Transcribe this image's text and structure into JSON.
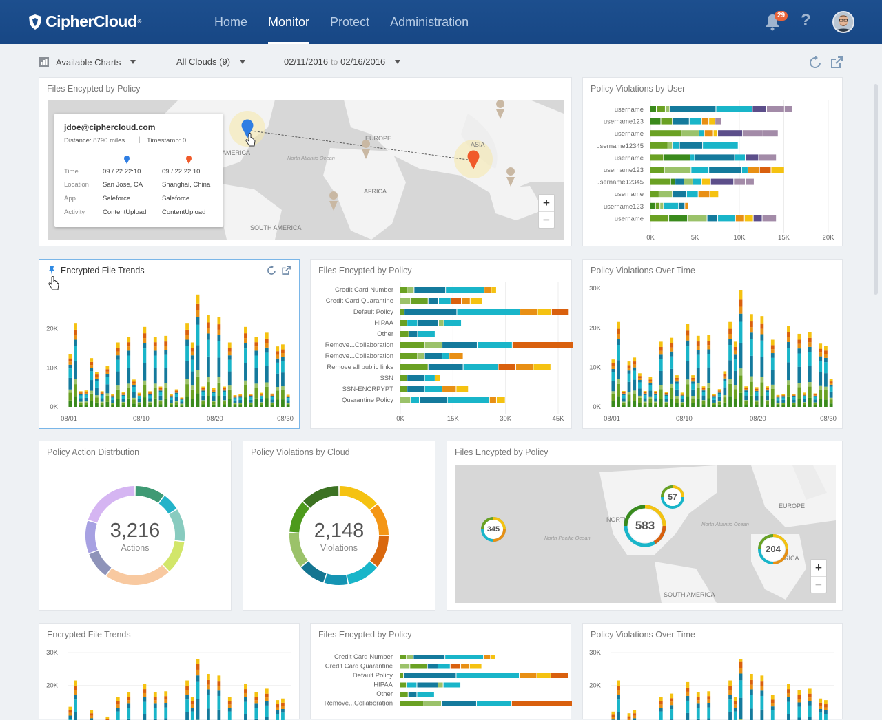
{
  "app": {
    "brand": "CipherCloud",
    "trademark": "®"
  },
  "nav": {
    "items": [
      "Home",
      "Monitor",
      "Protect",
      "Administration"
    ],
    "active": "Monitor"
  },
  "header": {
    "notifications": "29",
    "help": "?"
  },
  "filters": {
    "charts": "Available Charts",
    "clouds": "All Clouds (9)",
    "date_from": "02/11/2016",
    "date_sep": "to",
    "date_to": "02/16/2016"
  },
  "colors": {
    "green_dark": "#3a8a1c",
    "green": "#6aa123",
    "green_light": "#9bc26a",
    "teal_dark": "#147a9c",
    "teal": "#19b5c9",
    "orange": "#e88f14",
    "orange_dark": "#d9600e",
    "yellow": "#f5c211",
    "purple": "#5c4e8a",
    "mauve": "#a38ba8"
  },
  "map1": {
    "title": "Files Encypted by Policy",
    "tooltip": {
      "email": "jdoe@ciphercloud.com",
      "distance": "Distance: 8790 miles",
      "sep": "|",
      "timestamp": "Timestamp: 0",
      "rows": [
        {
          "label": "Time",
          "a": "09 / 22 22:10",
          "b": "09 / 22 22:10"
        },
        {
          "label": "Location",
          "a": "San Jose, CA",
          "b": "Shanghai, China"
        },
        {
          "label": "App",
          "a": "Saleforce",
          "b": "Saleforce"
        },
        {
          "label": "Activity",
          "a": "ContentUpload",
          "b": "ContentUpload"
        }
      ]
    },
    "labels": {
      "europe": "EUROPE",
      "asia": "ASIA",
      "africa": "AFRICA",
      "south_america": "SOUTH AMERICA",
      "america": "AMERICA",
      "ocean": "North Atlantic Ocean"
    },
    "zoom_in": "+",
    "zoom_out": "−"
  },
  "violations_by_user": {
    "title": "Policy Violations by User",
    "chart_data": {
      "type": "bar",
      "orientation": "horizontal",
      "stacked": true,
      "categories": [
        "username",
        "username123",
        "username",
        "username12345",
        "username",
        "username123",
        "username12345",
        "username",
        "username123",
        "username"
      ],
      "segments": [
        [
          [
            "green_dark",
            700
          ],
          [
            "green",
            1000
          ],
          [
            "green_light",
            500
          ],
          [
            "teal_dark",
            5200
          ],
          [
            "teal",
            4100
          ],
          [
            "purple",
            1600
          ],
          [
            "mauve",
            2000
          ],
          [
            "mauve",
            900
          ]
        ],
        [
          [
            "green_dark",
            1200
          ],
          [
            "green",
            1300
          ],
          [
            "teal_dark",
            1900
          ],
          [
            "teal",
            1400
          ],
          [
            "orange",
            800
          ],
          [
            "yellow",
            700
          ],
          [
            "mauve",
            700
          ]
        ],
        [
          [
            "green",
            3500
          ],
          [
            "green_light",
            2000
          ],
          [
            "teal",
            600
          ],
          [
            "orange",
            1000
          ],
          [
            "yellow",
            500
          ],
          [
            "purple",
            2800
          ],
          [
            "mauve",
            2300
          ],
          [
            "mauve",
            1700
          ]
        ],
        [
          [
            "green",
            2000
          ],
          [
            "green_light",
            500
          ],
          [
            "teal",
            800
          ],
          [
            "teal_dark",
            2600
          ],
          [
            "teal",
            4000
          ]
        ],
        [
          [
            "green",
            1500
          ],
          [
            "green_dark",
            3000
          ],
          [
            "teal",
            500
          ],
          [
            "teal_dark",
            4500
          ],
          [
            "teal",
            1200
          ],
          [
            "purple",
            1500
          ],
          [
            "mauve",
            2000
          ]
        ],
        [
          [
            "green",
            1600
          ],
          [
            "green_light",
            3000
          ],
          [
            "teal",
            2000
          ],
          [
            "teal_dark",
            3700
          ],
          [
            "teal",
            700
          ],
          [
            "orange",
            1300
          ],
          [
            "orange_dark",
            1300
          ],
          [
            "yellow",
            1500
          ]
        ],
        [
          [
            "green",
            2300
          ],
          [
            "green_dark",
            500
          ],
          [
            "teal_dark",
            1000
          ],
          [
            "green_light",
            1000
          ],
          [
            "teal",
            1000
          ],
          [
            "yellow",
            1000
          ],
          [
            "purple",
            2600
          ],
          [
            "mauve",
            1300
          ],
          [
            "mauve",
            1000
          ]
        ],
        [
          [
            "green",
            1000
          ],
          [
            "green_light",
            1500
          ],
          [
            "teal_dark",
            1600
          ],
          [
            "teal",
            1300
          ],
          [
            "orange",
            1300
          ],
          [
            "yellow",
            1000
          ]
        ],
        [
          [
            "green_dark",
            600
          ],
          [
            "green",
            500
          ],
          [
            "green_light",
            400
          ],
          [
            "teal",
            1700
          ],
          [
            "teal_dark",
            700
          ],
          [
            "orange",
            400
          ]
        ],
        [
          [
            "green",
            2100
          ],
          [
            "green_dark",
            2100
          ],
          [
            "green_light",
            2200
          ],
          [
            "teal_dark",
            1200
          ],
          [
            "teal",
            2000
          ],
          [
            "orange",
            1000
          ],
          [
            "yellow",
            1000
          ],
          [
            "purple",
            1000
          ],
          [
            "mauve",
            1600
          ]
        ]
      ],
      "xlim": [
        0,
        20000
      ],
      "xticks": [
        "0K",
        "5K",
        "10K",
        "15K",
        "20K"
      ]
    }
  },
  "trends1": {
    "title": "Encrypted File Trends",
    "chart_data": {
      "type": "bar",
      "stacked": true,
      "ylim": [
        0,
        30000
      ],
      "yticks": [
        "0K",
        "10K",
        "20K"
      ],
      "xticks": [
        "08/01",
        "08/10",
        "08/20",
        "08/30"
      ],
      "values": [
        13500,
        21500,
        4000,
        4200,
        12500,
        9000,
        4000,
        10500,
        3200,
        16500,
        3800,
        18000,
        7000,
        3600,
        20500,
        4000,
        18000,
        5200,
        18200,
        3200,
        4500,
        2400,
        21500,
        16500,
        28800,
        5200,
        23500,
        4800,
        23000,
        5200,
        16500,
        3000,
        3200,
        20500,
        3300,
        18000,
        3600,
        19000,
        3400,
        15500,
        16000,
        3100
      ]
    }
  },
  "policy_bars": {
    "title": "Files Encypted by Policy",
    "chart_data": {
      "type": "bar",
      "orientation": "horizontal",
      "stacked": true,
      "categories": [
        "Credit Card Number",
        "Credit Card Quarantine",
        "Default Policy",
        "HIPAA",
        "Other",
        "Remove...Collaboration",
        "Remove...Collaboration",
        "Remove all public links",
        "SSN",
        "SSN-ENCRPYPT",
        "Quarantine Policy"
      ],
      "segments": [
        [
          [
            "green",
            2000
          ],
          [
            "green_light",
            2000
          ],
          [
            "teal_dark",
            9000
          ],
          [
            "teal",
            11000
          ],
          [
            "orange",
            2000
          ],
          [
            "yellow",
            1500
          ]
        ],
        [
          [
            "green_light",
            3000
          ],
          [
            "green",
            5000
          ],
          [
            "teal_dark",
            3000
          ],
          [
            "teal",
            3500
          ],
          [
            "orange_dark",
            3000
          ],
          [
            "orange",
            2500
          ],
          [
            "yellow",
            3500
          ]
        ],
        [
          [
            "green",
            1200
          ],
          [
            "teal_dark",
            15000
          ],
          [
            "teal",
            18000
          ],
          [
            "orange",
            5000
          ],
          [
            "yellow",
            4000
          ],
          [
            "orange_dark",
            5000
          ]
        ],
        [
          [
            "green",
            2000
          ],
          [
            "teal",
            3000
          ],
          [
            "teal_dark",
            6000
          ],
          [
            "green_light",
            1500
          ],
          [
            "teal",
            5000
          ]
        ],
        [
          [
            "green",
            2500
          ],
          [
            "teal_dark",
            2500
          ],
          [
            "teal",
            5000
          ]
        ],
        [
          [
            "green",
            7000
          ],
          [
            "green_light",
            5000
          ],
          [
            "teal_dark",
            10000
          ],
          [
            "teal",
            10000
          ],
          [
            "orange_dark",
            20000
          ],
          [
            "orange",
            10000
          ],
          [
            "yellow",
            10000
          ]
        ],
        [
          [
            "green",
            5000
          ],
          [
            "green_light",
            2000
          ],
          [
            "teal_dark",
            5000
          ],
          [
            "teal",
            2000
          ],
          [
            "orange",
            4000
          ]
        ],
        [
          [
            "green",
            8000
          ],
          [
            "teal_dark",
            10000
          ],
          [
            "teal",
            10000
          ],
          [
            "orange_dark",
            5000
          ],
          [
            "orange",
            5000
          ],
          [
            "yellow",
            5000
          ]
        ],
        [
          [
            "green",
            2000
          ],
          [
            "teal_dark",
            5000
          ],
          [
            "teal",
            3000
          ],
          [
            "yellow",
            1500
          ]
        ],
        [
          [
            "green",
            2000
          ],
          [
            "teal_dark",
            5000
          ],
          [
            "teal",
            5000
          ],
          [
            "orange",
            4000
          ],
          [
            "yellow",
            3500
          ]
        ],
        [
          [
            "green_light",
            3000
          ],
          [
            "teal",
            2500
          ],
          [
            "teal_dark",
            8000
          ],
          [
            "teal",
            12000
          ],
          [
            "orange",
            2000
          ],
          [
            "yellow",
            2500
          ]
        ]
      ],
      "xlim": [
        0,
        45000
      ],
      "xticks": [
        "0K",
        "15K",
        "30K",
        "45K"
      ]
    }
  },
  "over_time1": {
    "title": "Policy Violations Over Time",
    "chart_data": {
      "type": "bar",
      "stacked": true,
      "ylim": [
        0,
        30000
      ],
      "yticks": [
        "0K",
        "10K",
        "20K",
        "30K"
      ],
      "xticks": [
        "08/01",
        "08/10",
        "08/20",
        "08/30"
      ],
      "values": [
        12000,
        21500,
        4000,
        11500,
        12500,
        8500,
        4000,
        7500,
        4000,
        16500,
        3800,
        17500,
        8000,
        3600,
        21000,
        8000,
        18000,
        5200,
        18200,
        3200,
        4500,
        9000,
        21500,
        16500,
        29500,
        5200,
        23500,
        5000,
        23000,
        5200,
        17000,
        3000,
        3200,
        20500,
        3300,
        18500,
        3600,
        19000,
        3400,
        16000,
        15500,
        7000
      ]
    }
  },
  "action_distribution": {
    "title": "Policy Action Distrbution",
    "value": "3,216",
    "unit": "Actions",
    "chart_data": {
      "type": "pie",
      "segments": [
        {
          "value": 10,
          "color": "#3f9a74"
        },
        {
          "value": 6,
          "color": "#23b3c9"
        },
        {
          "value": 11,
          "color": "#88cbbf"
        },
        {
          "value": 11,
          "color": "#d2e66a"
        },
        {
          "value": 22,
          "color": "#f8c9a0"
        },
        {
          "value": 9,
          "color": "#8e93b9"
        },
        {
          "value": 11,
          "color": "#a7a1e2"
        },
        {
          "value": 20,
          "color": "#d5b5f2"
        }
      ]
    }
  },
  "violations_by_cloud": {
    "title": "Policy Violations by Cloud",
    "value": "2,148",
    "unit": "Violations",
    "chart_data": {
      "type": "pie",
      "segments": [
        {
          "value": 14,
          "color": "#f5c211"
        },
        {
          "value": 11,
          "color": "#f49616"
        },
        {
          "value": 11,
          "color": "#d9680f"
        },
        {
          "value": 11,
          "color": "#19b5c9"
        },
        {
          "value": 8,
          "color": "#1594b3"
        },
        {
          "value": 9,
          "color": "#147591"
        },
        {
          "value": 12,
          "color": "#9bc26a"
        },
        {
          "value": 11,
          "color": "#4d9a1c"
        },
        {
          "value": 13,
          "color": "#3c7222"
        }
      ]
    }
  },
  "map2": {
    "title": "Files Encypted by Policy",
    "bubbles": [
      "345",
      "583",
      "57",
      "204"
    ],
    "labels": {
      "europe": "EUROPE",
      "north": "NORTH",
      "south_america": "SOUTH AMERICA",
      "africa": "RICA",
      "pacific": "North Pacific Ocean",
      "atlantic": "North Atlantic Ocean"
    },
    "zoom_in": "+",
    "zoom_out": "−"
  },
  "trends2": {
    "title": "Encrypted File Trends",
    "yticks": [
      "30K",
      "20K"
    ]
  },
  "policy_bars2": {
    "title": "Files Encypted by Policy",
    "categories": [
      "Credit Card Number",
      "Credit Card Quarantine",
      "Default Policy",
      "HIPAA",
      "Other",
      "Remove...Collaboration"
    ]
  },
  "over_time2": {
    "title": "Policy Violations Over Time",
    "yticks": [
      "30K",
      "20K"
    ]
  }
}
